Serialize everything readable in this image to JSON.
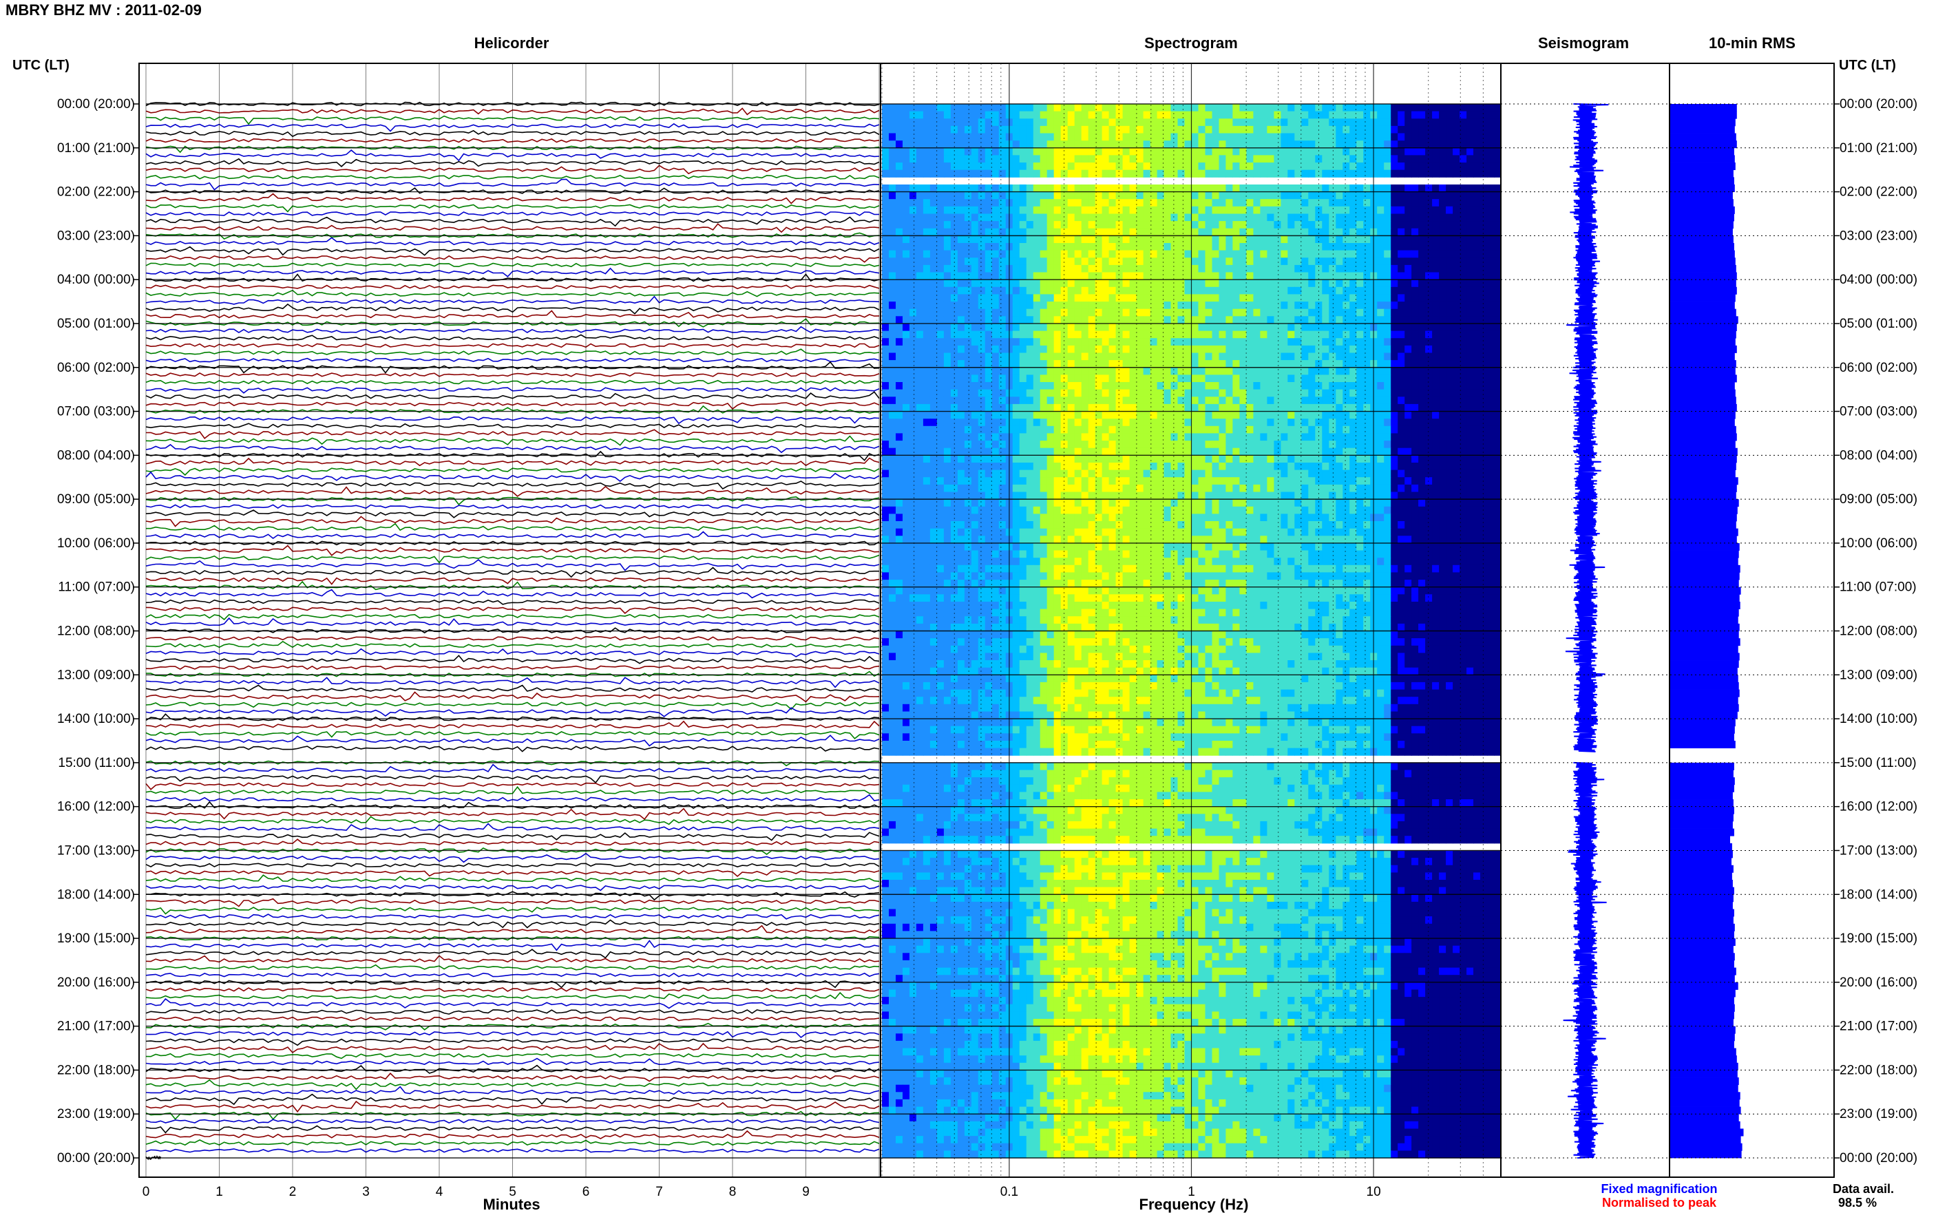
{
  "station_title": "MBRY BHZ MV : 2011-02-09",
  "chart_data": [
    {
      "type": "line",
      "panel": "helicorder",
      "title": "Helicorder",
      "xlabel": "Minutes",
      "xlim": [
        0,
        10
      ],
      "x_ticks": [
        "0",
        "1",
        "2",
        "3",
        "4",
        "5",
        "6",
        "7",
        "8",
        "9"
      ],
      "y_axis_title_left": "UTC (LT)",
      "y_axis_title_right": "UTC (LT)",
      "hour_labels": [
        "00:00 (20:00)",
        "01:00 (21:00)",
        "02:00 (22:00)",
        "03:00 (23:00)",
        "04:00 (00:00)",
        "05:00 (01:00)",
        "06:00 (02:00)",
        "07:00 (03:00)",
        "08:00 (04:00)",
        "09:00 (05:00)",
        "10:00 (06:00)",
        "11:00 (07:00)",
        "12:00 (08:00)",
        "13:00 (09:00)",
        "14:00 (10:00)",
        "15:00 (11:00)",
        "16:00 (12:00)",
        "17:00 (13:00)",
        "18:00 (14:00)",
        "19:00 (15:00)",
        "20:00 (16:00)",
        "21:00 (17:00)",
        "22:00 (18:00)",
        "23:00 (19:00)",
        "00:00 (20:00)"
      ],
      "lines_per_hour": 6,
      "trace_colors": [
        "#000000",
        "#8b0000",
        "#008000",
        "#0000cd"
      ],
      "data_gaps_utc": [
        "14:45-15:00"
      ]
    },
    {
      "type": "heatmap",
      "panel": "spectrogram",
      "title": "Spectrogram",
      "xlabel": "Frequency (Hz)",
      "x_scale": "log",
      "xlim": [
        0.02,
        50
      ],
      "x_ticks": [
        "0.1",
        "1",
        "10"
      ],
      "colormap": [
        "#00008b",
        "#0000ff",
        "#1e90ff",
        "#00bfff",
        "#40e0d0",
        "#adff2f",
        "#ffff00"
      ],
      "peak_band_hz": [
        0.18,
        0.45
      ],
      "rows_per_hour": 6,
      "data_gaps_utc": [
        "01:40-01:50",
        "14:45-15:00",
        "16:50-17:00"
      ]
    },
    {
      "type": "line",
      "panel": "seismogram",
      "title": "Seismogram",
      "color": "#0000ff",
      "data_gaps_utc": [
        "14:45-15:00"
      ]
    },
    {
      "type": "bar",
      "panel": "rms",
      "title": "10-min RMS",
      "orientation": "horizontal",
      "color": "#0000ff",
      "x_scale_note": "relative",
      "values": [
        1.0,
        1.0,
        0.98,
        0.97,
        0.99,
        1.0,
        0.96,
        0.97,
        0.98,
        0.95,
        0.96,
        0.97,
        0.94,
        0.95,
        0.97,
        0.96,
        0.95,
        0.94,
        0.95,
        0.96,
        0.97,
        0.98,
        0.99,
        1.0,
        0.99,
        1.0,
        0.98,
        0.97,
        0.99,
        1.02,
        1.0,
        0.99,
        0.98,
        1.0,
        0.97,
        0.99,
        0.98,
        1.0,
        0.97,
        0.98,
        0.99,
        1.0,
        0.98,
        0.97,
        0.99,
        1.0,
        0.98,
        1.01,
        1.0,
        0.99,
        0.98,
        1.02,
        1.0,
        0.99,
        1.03,
        1.01,
        1.0,
        0.99,
        1.02,
        1.0,
        1.04,
        1.03,
        1.02,
        1.05,
        1.04,
        1.03,
        1.06,
        1.04,
        1.05,
        1.03,
        1.02,
        1.04,
        1.03,
        1.05,
        1.02,
        1.04,
        1.03,
        1.01,
        1.02,
        1.03,
        1.04,
        1.02,
        1.03,
        1.01,
        0.98,
        0.97,
        0.96,
        0.98,
        0.0,
        0.0,
        0.96,
        0.95,
        0.97,
        0.96,
        0.94,
        0.95,
        0.96,
        0.95,
        0.94,
        0.96,
        0.9,
        0.93,
        0.94,
        0.92,
        0.95,
        0.93,
        0.94,
        0.96,
        0.95,
        0.94,
        0.96,
        0.95,
        0.97,
        0.96,
        0.98,
        0.95,
        0.97,
        0.96,
        0.99,
        0.97,
        1.02,
        0.98,
        0.96,
        0.97,
        0.96,
        0.95,
        0.98,
        0.97,
        0.96,
        0.99,
        1.0,
        1.02,
        1.01,
        1.03,
        1.02,
        1.05,
        1.04,
        1.06,
        1.03,
        1.05,
        1.1,
        1.06,
        1.08,
        1.07
      ],
      "data_gaps_utc": [
        "14:40-15:00"
      ]
    }
  ],
  "legend": {
    "fixed_magnification": "Fixed magnification",
    "fixed_color": "#0000ff",
    "normalised_to_peak": "Normalised to peak",
    "normalised_color": "#ff0000"
  },
  "data_availability": {
    "label": "Data avail.",
    "value": "98.5 %"
  }
}
